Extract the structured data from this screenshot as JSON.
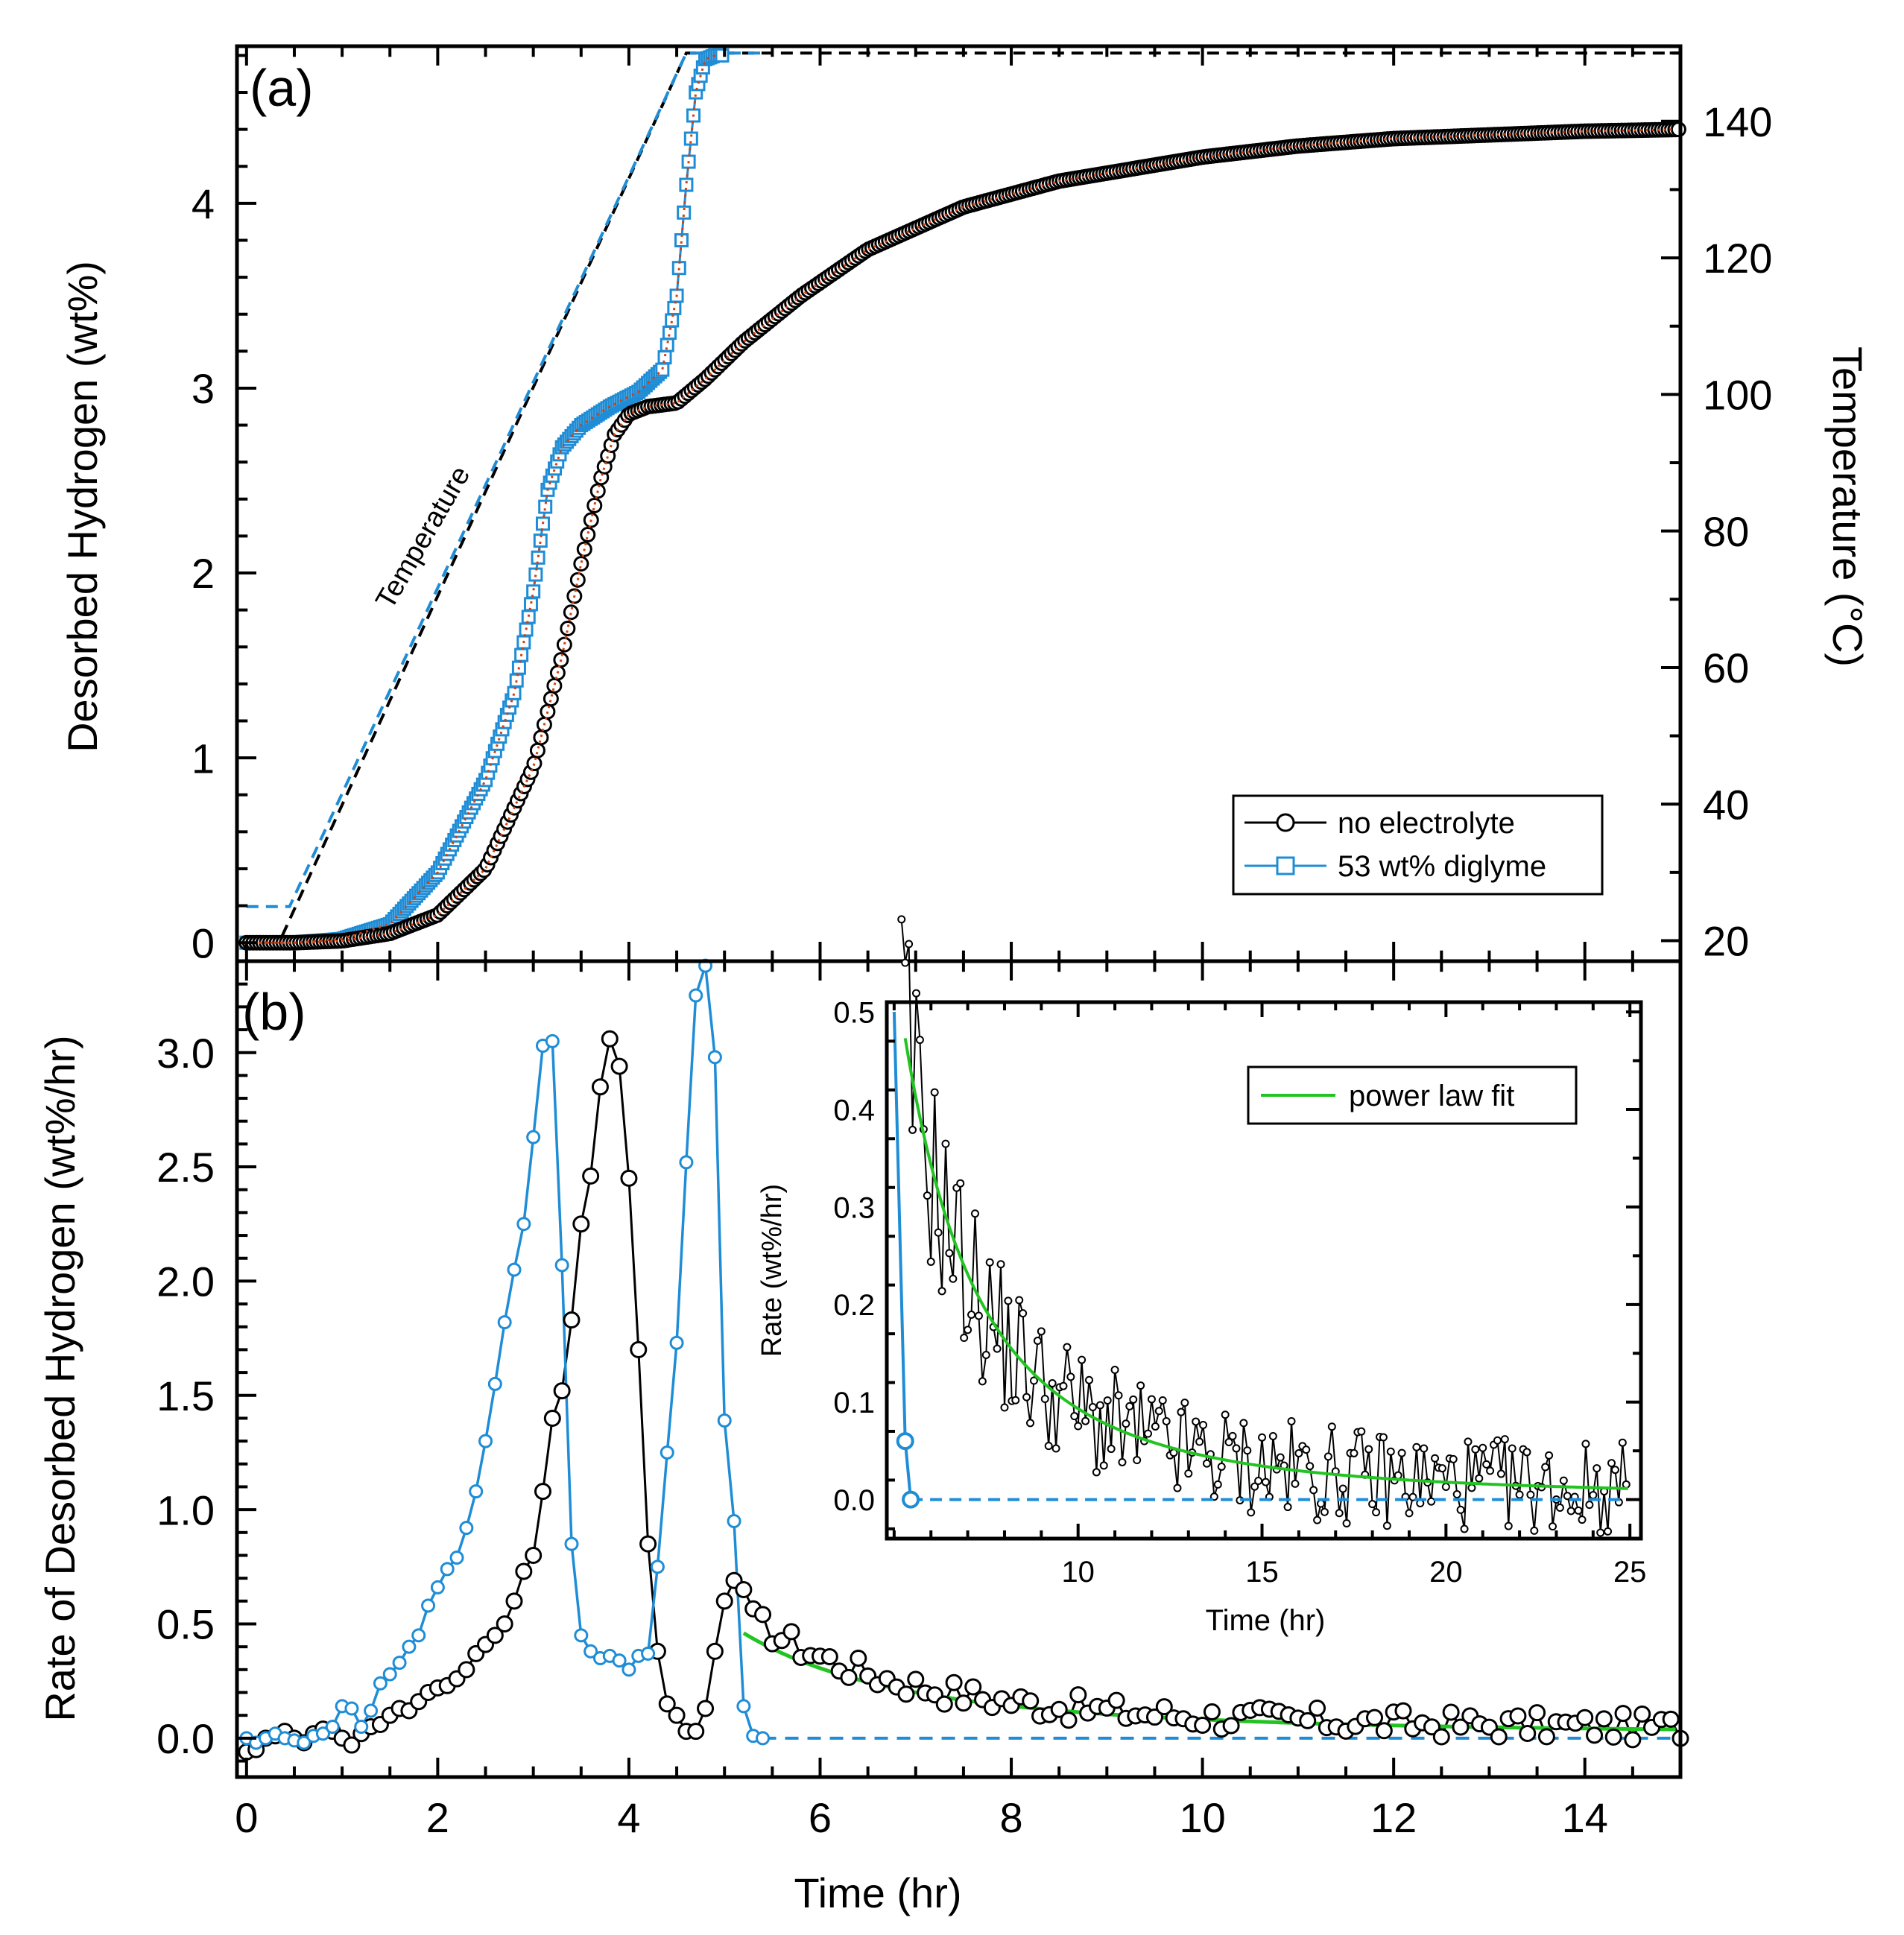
{
  "colors": {
    "no_electrolyte": "#000000",
    "diglyme": "#1f8dd6",
    "fit": "#22c422",
    "fit_dots": "#d04010",
    "axis": "#000000"
  },
  "chart_data": [
    {
      "panel": "(a)",
      "type": "line",
      "xlabel": "Time (hr)",
      "ylabel": "Desorbed Hydrogen (wt%)",
      "y2label": "Temperature (°C)",
      "xlim": [
        -0.1,
        15
      ],
      "ylim": [
        -0.1,
        4.85
      ],
      "y2lim": [
        17,
        151
      ],
      "xticks": [
        0,
        2,
        4,
        6,
        8,
        10,
        12,
        14
      ],
      "yticks": [
        0,
        1,
        2,
        3,
        4
      ],
      "y2ticks": [
        20,
        40,
        60,
        80,
        100,
        120,
        140
      ],
      "annotation": "Temperature",
      "legend": [
        "no electrolyte",
        "53 wt% diglyme"
      ],
      "legend_position": "lower-right",
      "series": [
        {
          "name": "no electrolyte",
          "marker": "circle",
          "x": [
            0,
            0.5,
            1.0,
            1.5,
            2.0,
            2.5,
            3.0,
            3.3,
            3.5,
            3.7,
            3.85,
            4.0,
            4.2,
            4.5,
            4.8,
            5.2,
            5.8,
            6.5,
            7.5,
            8.5,
            10,
            11,
            12,
            13,
            14,
            15
          ],
          "y": [
            0,
            0,
            0.01,
            0.05,
            0.15,
            0.4,
            0.95,
            1.55,
            2.05,
            2.5,
            2.75,
            2.86,
            2.9,
            2.92,
            3.05,
            3.25,
            3.5,
            3.75,
            3.98,
            4.12,
            4.25,
            4.31,
            4.35,
            4.37,
            4.39,
            4.4
          ]
        },
        {
          "name": "53 wt% diglyme",
          "marker": "square",
          "x": [
            0,
            0.5,
            1.0,
            1.5,
            2.0,
            2.5,
            2.8,
            3.0,
            3.15,
            3.3,
            3.5,
            3.8,
            4.1,
            4.35,
            4.5,
            4.6,
            4.7,
            4.8,
            4.9,
            5.0
          ],
          "y": [
            0,
            0,
            0.02,
            0.1,
            0.38,
            0.88,
            1.35,
            1.9,
            2.45,
            2.68,
            2.8,
            2.9,
            2.98,
            3.1,
            3.5,
            4.1,
            4.6,
            4.78,
            4.8,
            4.8
          ]
        },
        {
          "name": "Temperature (no electrolyte)",
          "style": "dashed",
          "axis": "y2",
          "x": [
            0,
            0.35,
            4.6,
            15
          ],
          "y": [
            20,
            20,
            150,
            150
          ]
        },
        {
          "name": "Temperature (53 wt% diglyme)",
          "style": "dashed",
          "axis": "y2",
          "x": [
            0,
            0.45,
            4.6,
            5.4
          ],
          "y": [
            25,
            25,
            150,
            150
          ]
        }
      ]
    },
    {
      "panel": "(b)",
      "type": "line",
      "xlabel": "Time (hr)",
      "ylabel": "Rate of Desorbed Hydrogen (wt%/hr)",
      "xlim": [
        -0.1,
        15
      ],
      "ylim": [
        -0.17,
        3.4
      ],
      "xticks": [
        0,
        2,
        4,
        6,
        8,
        10,
        12,
        14
      ],
      "yticks": [
        0.0,
        0.5,
        1.0,
        1.5,
        2.0,
        2.5,
        3.0
      ],
      "series": [
        {
          "name": "no electrolyte",
          "marker": "circle",
          "x": [
            0,
            0.1,
            0.2,
            0.3,
            0.4,
            0.5,
            0.6,
            0.7,
            0.8,
            0.9,
            1.0,
            1.1,
            1.2,
            1.3,
            1.4,
            1.5,
            1.6,
            1.7,
            1.8,
            1.9,
            2.0,
            2.1,
            2.2,
            2.3,
            2.4,
            2.5,
            2.6,
            2.7,
            2.8,
            2.9,
            3.0,
            3.1,
            3.2,
            3.3,
            3.4,
            3.5,
            3.6,
            3.7,
            3.8,
            3.9,
            4.0,
            4.1,
            4.2,
            4.3,
            4.4,
            4.5,
            4.6,
            4.7,
            4.8,
            4.9,
            5.0,
            5.1,
            5.2
          ],
          "y": [
            -0.06,
            -0.05,
            0.0,
            0.01,
            0.03,
            0.0,
            -0.02,
            0.02,
            0.04,
            0.03,
            0.0,
            -0.03,
            0.02,
            0.05,
            0.06,
            0.1,
            0.13,
            0.12,
            0.16,
            0.2,
            0.22,
            0.23,
            0.26,
            0.3,
            0.37,
            0.41,
            0.45,
            0.5,
            0.6,
            0.73,
            0.8,
            1.08,
            1.4,
            1.52,
            1.83,
            2.25,
            2.46,
            2.85,
            3.06,
            2.94,
            2.45,
            1.7,
            0.85,
            0.38,
            0.15,
            0.1,
            0.03,
            0.03,
            0.13,
            0.38,
            0.6,
            0.69,
            0.65
          ]
        },
        {
          "name": "no electrolyte (tail)",
          "marker": "circle",
          "noisy": true,
          "x_range": [
            5.2,
            15
          ],
          "trend": "power-law decay from 0.55 to 0.03"
        },
        {
          "name": "53 wt% diglyme",
          "marker": "circle",
          "x": [
            0,
            0.1,
            0.2,
            0.3,
            0.4,
            0.5,
            0.6,
            0.7,
            0.8,
            0.9,
            1.0,
            1.1,
            1.2,
            1.3,
            1.4,
            1.5,
            1.6,
            1.7,
            1.8,
            1.9,
            2.0,
            2.1,
            2.2,
            2.3,
            2.4,
            2.5,
            2.6,
            2.7,
            2.8,
            2.9,
            3.0,
            3.1,
            3.2,
            3.3,
            3.4,
            3.5,
            3.6,
            3.7,
            3.8,
            3.9,
            4.0,
            4.1,
            4.2,
            4.3,
            4.4,
            4.5,
            4.6,
            4.7,
            4.8,
            4.9,
            5.0,
            5.1,
            5.2,
            5.3,
            5.4
          ],
          "y": [
            0.0,
            -0.02,
            0.0,
            0.02,
            0.0,
            -0.01,
            -0.02,
            0.01,
            0.02,
            0.05,
            0.14,
            0.13,
            0.05,
            0.12,
            0.24,
            0.28,
            0.33,
            0.4,
            0.45,
            0.58,
            0.66,
            0.74,
            0.79,
            0.92,
            1.08,
            1.3,
            1.55,
            1.82,
            2.05,
            2.25,
            2.63,
            3.03,
            3.05,
            2.07,
            0.85,
            0.45,
            0.38,
            0.35,
            0.36,
            0.34,
            0.3,
            0.36,
            0.37,
            0.75,
            1.25,
            1.73,
            2.52,
            3.25,
            3.38,
            2.98,
            1.39,
            0.95,
            0.14,
            0.01,
            0.0
          ]
        },
        {
          "name": "53 wt% diglyme (zero)",
          "style": "dashed",
          "x": [
            5.4,
            15
          ],
          "y": [
            0,
            0
          ]
        },
        {
          "name": "power law fit",
          "style": "solid",
          "x_range": [
            5.2,
            15
          ],
          "trend": "0.46 decaying to 0.03"
        }
      ],
      "inset": {
        "type": "line",
        "xlabel": "Time (hr)",
        "ylabel": "Rate (wt%/hr)",
        "xlim": [
          4.8,
          25.3
        ],
        "ylim": [
          -0.04,
          0.51
        ],
        "xticks": [
          10,
          15,
          20,
          25
        ],
        "yticks": [
          0.0,
          0.1,
          0.2,
          0.3,
          0.4,
          0.5
        ],
        "legend": [
          "power law fit"
        ],
        "legend_position": "top-right",
        "series": [
          {
            "name": "no electrolyte",
            "marker": "small-circle",
            "noisy": true,
            "x_range": [
              5.2,
              25
            ],
            "trend": "0.48 decaying to 0.02"
          },
          {
            "name": "53 wt% diglyme",
            "marker": "circle",
            "x": [
              5.0,
              5.3,
              5.45
            ],
            "y": [
              0.5,
              0.06,
              0.0
            ]
          },
          {
            "name": "53 wt% diglyme (zero)",
            "style": "dashed",
            "x": [
              5.45,
              25
            ],
            "y": [
              0,
              0
            ]
          },
          {
            "name": "power law fit",
            "style": "solid",
            "x_range": [
              5.3,
              25
            ],
            "trend": "0.47 decaying to 0.003"
          }
        ]
      }
    }
  ]
}
